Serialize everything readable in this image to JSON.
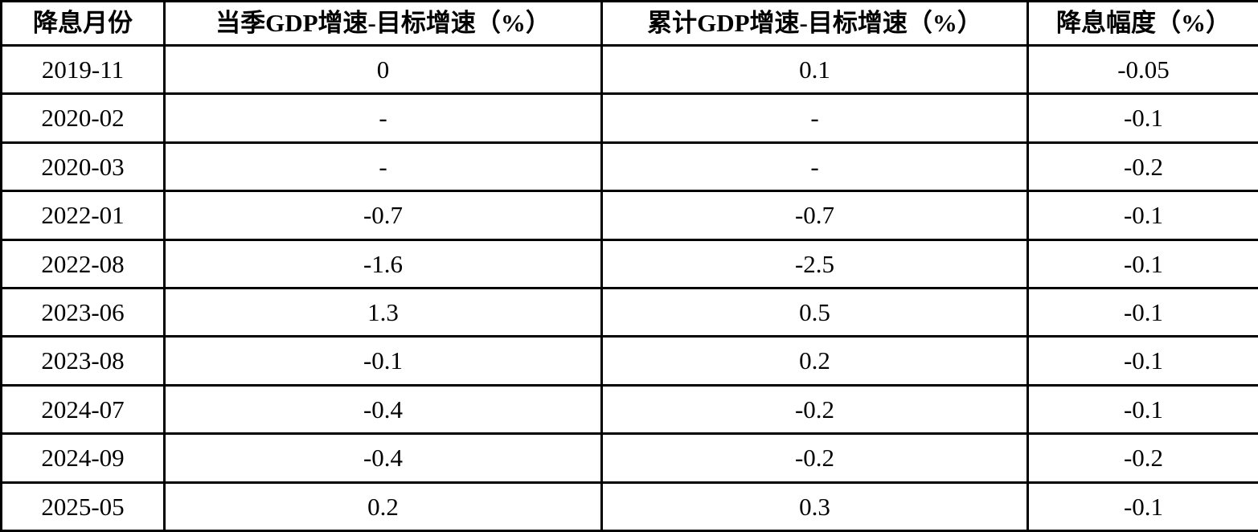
{
  "colors": {
    "background": "#ffffff",
    "border": "#000000",
    "text": "#000000"
  },
  "chart_data": {
    "type": "table",
    "columns": [
      "降息月份",
      "当季GDP增速-目标增速（%）",
      "累计GDP增速-目标增速（%）",
      "降息幅度（%）"
    ],
    "rows": [
      [
        "2019-11",
        "0",
        "0.1",
        "-0.05"
      ],
      [
        "2020-02",
        "-",
        "-",
        "-0.1"
      ],
      [
        "2020-03",
        "-",
        "-",
        "-0.2"
      ],
      [
        "2022-01",
        "-0.7",
        "-0.7",
        "-0.1"
      ],
      [
        "2022-08",
        "-1.6",
        "-2.5",
        "-0.1"
      ],
      [
        "2023-06",
        "1.3",
        "0.5",
        "-0.1"
      ],
      [
        "2023-08",
        "-0.1",
        "0.2",
        "-0.1"
      ],
      [
        "2024-07",
        "-0.4",
        "-0.2",
        "-0.1"
      ],
      [
        "2024-09",
        "-0.4",
        "-0.2",
        "-0.2"
      ],
      [
        "2025-05",
        "0.2",
        "0.3",
        "-0.1"
      ]
    ]
  }
}
